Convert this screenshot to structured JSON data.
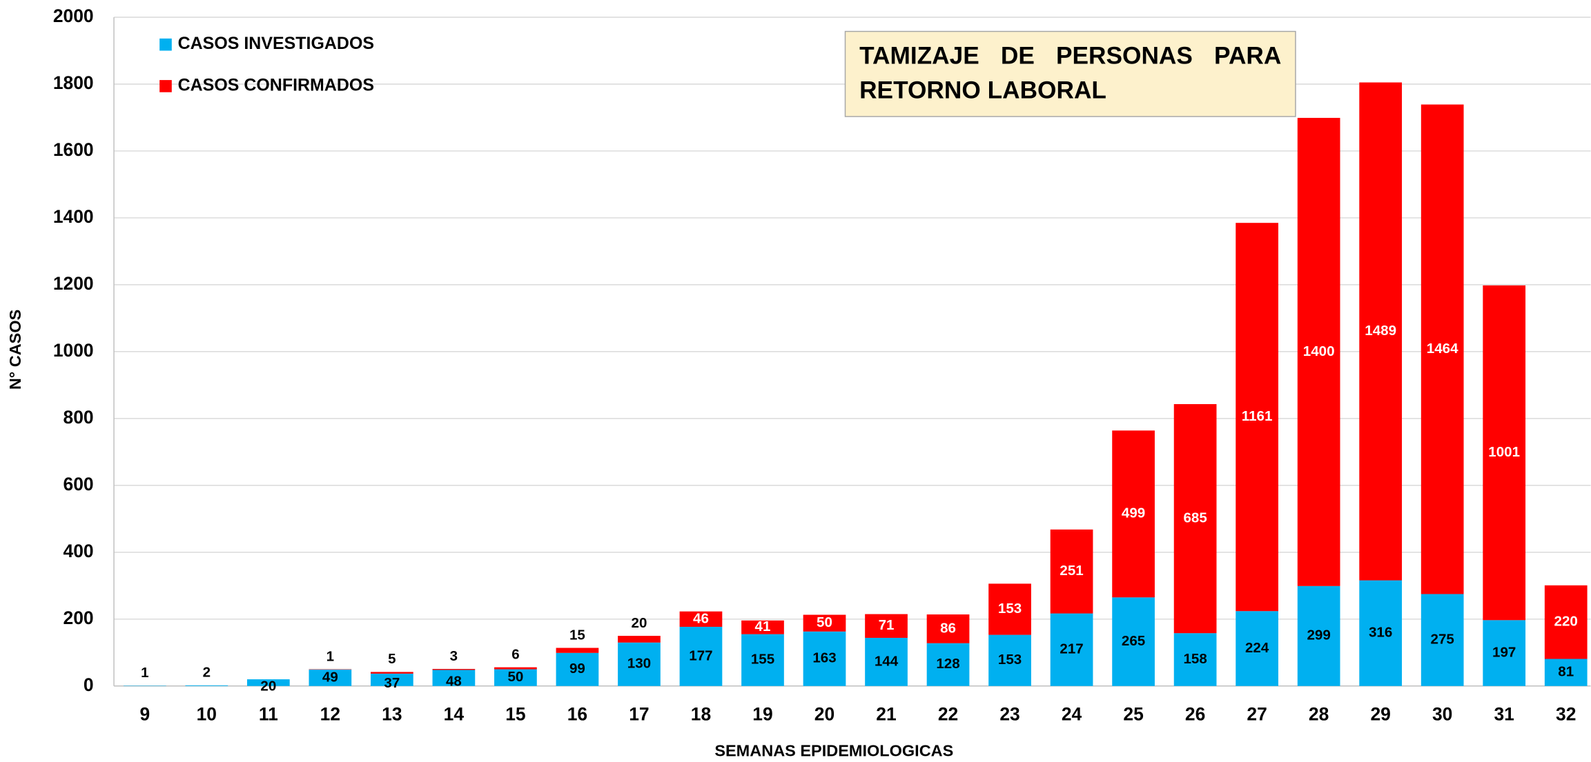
{
  "chart_data": {
    "type": "stacked_bar",
    "title": "TAMIZAJE DE PERSONAS PARA RETORNO LABORAL",
    "xlabel": "SEMANAS EPIDEMIOLOGICAS",
    "ylabel": "N° CASOS",
    "categories": [
      "9",
      "10",
      "11",
      "12",
      "13",
      "14",
      "15",
      "16",
      "17",
      "18",
      "19",
      "20",
      "21",
      "22",
      "23",
      "24",
      "25",
      "26",
      "27",
      "28",
      "29",
      "30",
      "31",
      "32"
    ],
    "series": [
      {
        "name": "CASOS INVESTIGADOS",
        "color": "#00b0f0",
        "values": [
          1,
          2,
          20,
          49,
          37,
          48,
          50,
          99,
          130,
          177,
          155,
          163,
          144,
          128,
          153,
          217,
          265,
          158,
          224,
          299,
          316,
          275,
          197,
          81
        ]
      },
      {
        "name": "CASOS CONFIRMADOS",
        "color": "#ff0000",
        "values": [
          null,
          null,
          null,
          1,
          5,
          3,
          6,
          15,
          20,
          46,
          41,
          50,
          71,
          86,
          153,
          251,
          499,
          685,
          1161,
          1400,
          1489,
          1464,
          1001,
          220
        ]
      }
    ],
    "ylim": [
      0,
      2000
    ],
    "yticks": [
      0,
      200,
      400,
      600,
      800,
      1000,
      1200,
      1400,
      1600,
      1800,
      2000
    ],
    "grid": true
  }
}
